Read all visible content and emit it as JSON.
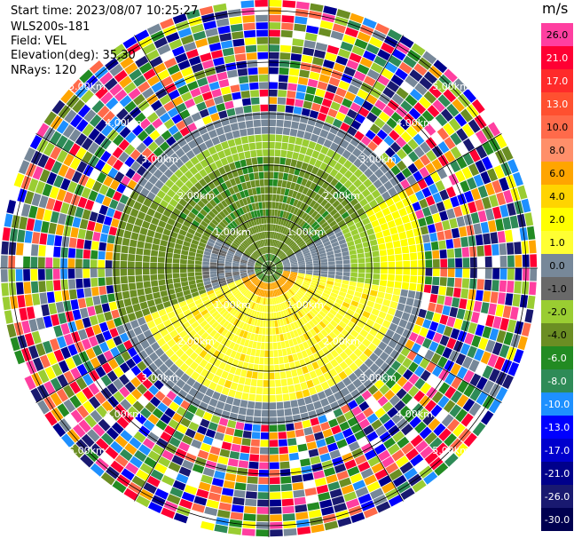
{
  "header": {
    "start_time": "Start time: 2023/08/07 10:25:27",
    "site": "WLS200s-181",
    "field": "Field: VEL",
    "elevation": "Elevation(deg): 35.30",
    "nrays": "NRays: 120"
  },
  "colorbar": {
    "unit": "m/s",
    "levels": [
      {
        "label": "26.0",
        "color": "#ff3fa0"
      },
      {
        "label": "21.0",
        "color": "#ff0033"
      },
      {
        "label": "17.0",
        "color": "#ff2a2a"
      },
      {
        "label": "13.0",
        "color": "#ff5030"
      },
      {
        "label": "10.0",
        "color": "#ff6a4a"
      },
      {
        "label": "8.0",
        "color": "#ff8f6a"
      },
      {
        "label": "6.0",
        "color": "#ffa500"
      },
      {
        "label": "4.0",
        "color": "#ffd400"
      },
      {
        "label": "2.0",
        "color": "#ffff00"
      },
      {
        "label": "1.0",
        "color": "#ffff33"
      },
      {
        "label": "0.0",
        "color": "#778899"
      },
      {
        "label": "-1.0",
        "color": "#696969"
      },
      {
        "label": "-2.0",
        "color": "#9acd32"
      },
      {
        "label": "-4.0",
        "color": "#6b8e23"
      },
      {
        "label": "-6.0",
        "color": "#228b22"
      },
      {
        "label": "-8.0",
        "color": "#2e8b57"
      },
      {
        "label": "-10.0",
        "color": "#1e90ff"
      },
      {
        "label": "-13.0",
        "color": "#0000ff"
      },
      {
        "label": "-17.0",
        "color": "#0000cd"
      },
      {
        "label": "-21.0",
        "color": "#00008b"
      },
      {
        "label": "-26.0",
        "color": "#191970"
      },
      {
        "label": "-30.0",
        "color": "#000050"
      }
    ]
  },
  "chart_data": {
    "type": "heatmap",
    "subtype": "polar PPI (plan position indicator)",
    "field": "VEL",
    "units": "m/s",
    "elevation_deg": 35.3,
    "n_rays": 120,
    "range_rings": [
      {
        "label": "1.00km"
      },
      {
        "label": "2.00km"
      },
      {
        "label": "3.00km"
      },
      {
        "label": "4.00km"
      },
      {
        "label": "5.00km"
      }
    ],
    "spokes_deg": [
      0,
      30,
      60,
      90,
      120,
      150,
      180,
      210,
      240,
      270,
      300,
      330
    ],
    "pattern": {
      "inner_near_center": "green / olive (approaching, about -2 to -6 m/s) toward N and W",
      "mid_ring": "gray (about 0 m/s) band separating sectors",
      "south_east_sector": "yellow (receding, about +1 to +2 m/s) with orange streaks",
      "outer_rings": "noise (random colors beyond ~3 km)"
    }
  }
}
